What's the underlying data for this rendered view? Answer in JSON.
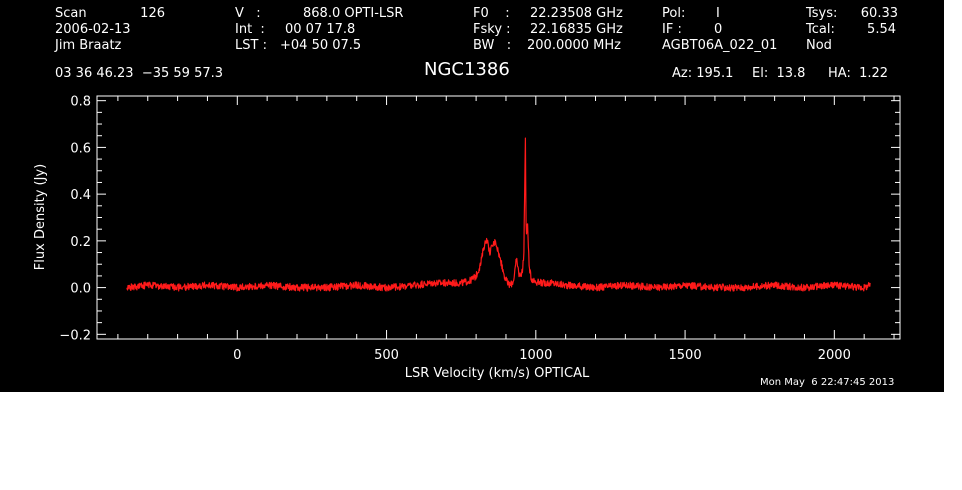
{
  "header": {
    "col1": [
      "Scan",
      "2006-02-13",
      "Jim Braatz"
    ],
    "scan_number": "126",
    "col2_labels": [
      "V   :",
      "Int  :",
      "LST :"
    ],
    "col2_values": [
      "868.0 OPTI-LSR",
      "00 07 17.8",
      "+04 50 07.5"
    ],
    "col3_labels": [
      "F0    :",
      "Fsky :",
      "BW   :"
    ],
    "col3_values": [
      "22.23508 GHz",
      "22.16835 GHz",
      "200.0000 MHz"
    ],
    "pol_label": "Pol:",
    "pol_value": "I",
    "if_label": "IF :",
    "if_value": "0",
    "project": "AGBT06A_022_01",
    "tsys_label": "Tsys:",
    "tsys_value": "60.33",
    "tcal_label": "Tcal:",
    "tcal_value": "5.54",
    "mode": "Nod",
    "coords": "03 36 46.23  −35 59 57.3",
    "source": "NGC1386",
    "az": "Az: 195.1",
    "el": "El:  13.8",
    "ha": "HA:  1.22",
    "date_footer": "Mon May  6 22:47:45 2013"
  },
  "colors": {
    "background": "#000000",
    "axes": "#ffffff",
    "trace": "#ff1a1a"
  },
  "chart_data": {
    "type": "line",
    "xlabel": "LSR Velocity (km/s) OPTICAL",
    "ylabel": "Flux Density (Jy)",
    "xlim": [
      -470,
      2220
    ],
    "ylim": [
      -0.22,
      0.82
    ],
    "xticks": [
      0,
      500,
      1000,
      1500,
      2000
    ],
    "xtick_labels": [
      "0",
      "500",
      "1000",
      "1500",
      "2000"
    ],
    "yticks": [
      -0.2,
      0.0,
      0.2,
      0.4,
      0.6,
      0.8
    ],
    "ytick_labels": [
      "−0.2",
      "0.0",
      "0.2",
      "0.4",
      "0.6",
      "0.8"
    ],
    "grid": false,
    "series": [
      {
        "x": [
          -370,
          -300,
          -200,
          -100,
          0,
          100,
          200,
          300,
          400,
          500,
          600,
          650,
          700,
          750,
          780,
          800,
          815,
          825,
          835,
          845,
          855,
          865,
          875,
          885,
          895,
          905,
          915,
          925,
          935,
          945,
          955,
          960,
          965,
          968,
          972,
          978,
          985,
          995,
          1010,
          1050,
          1100,
          1200,
          1300,
          1400,
          1500,
          1600,
          1700,
          1800,
          1900,
          2000,
          2100,
          2120
        ],
        "y": [
          0.0,
          0.01,
          0.0,
          0.01,
          0.0,
          0.01,
          0.0,
          0.0,
          0.01,
          0.0,
          0.01,
          0.02,
          0.02,
          0.02,
          0.03,
          0.05,
          0.1,
          0.17,
          0.21,
          0.15,
          0.18,
          0.2,
          0.15,
          0.1,
          0.05,
          0.02,
          0.01,
          0.03,
          0.12,
          0.05,
          0.07,
          0.15,
          0.64,
          0.2,
          0.29,
          0.08,
          0.04,
          0.03,
          0.02,
          0.02,
          0.01,
          0.0,
          0.01,
          0.0,
          0.01,
          0.0,
          0.0,
          0.01,
          0.0,
          0.01,
          0.0,
          0.01
        ]
      }
    ]
  }
}
